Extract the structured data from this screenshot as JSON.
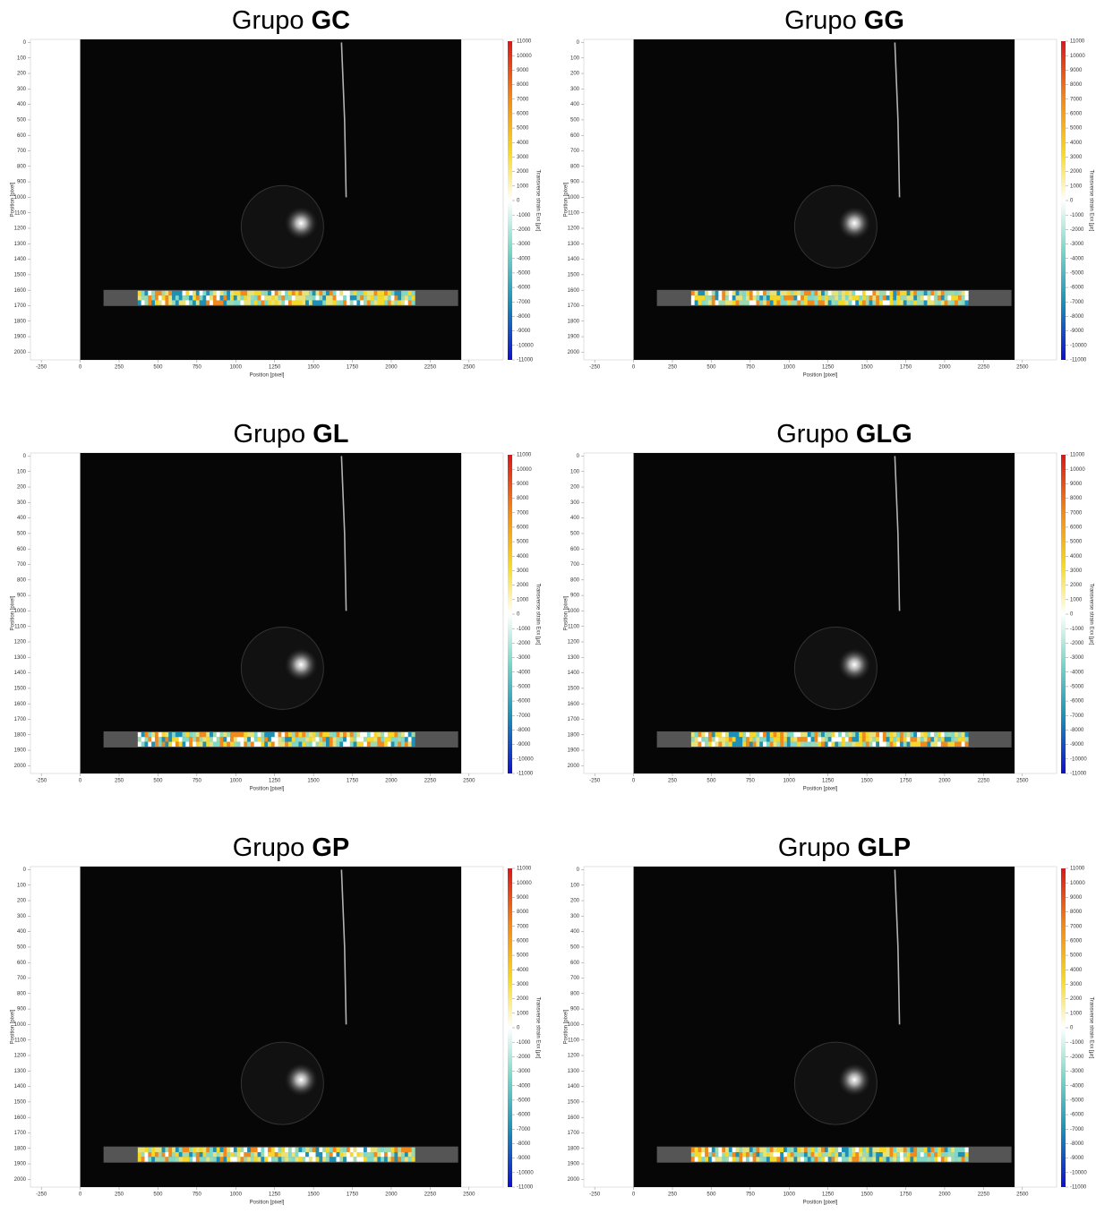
{
  "chart_data": [
    {
      "type": "image",
      "title_prefix": "Grupo",
      "title_group": "GC",
      "xlabel": "Position [pixel]",
      "ylabel": "Position [pixel]",
      "colorbar_label": "Transverse strain Exx [µε]",
      "xlim": [
        -320,
        2720
      ],
      "ylim": [
        2050,
        -20
      ],
      "xticks": [
        -250,
        0,
        250,
        500,
        750,
        1000,
        1250,
        1500,
        1750,
        2000,
        2250,
        2500
      ],
      "yticks": [
        0,
        100,
        200,
        300,
        400,
        500,
        600,
        700,
        800,
        900,
        1000,
        1100,
        1200,
        1300,
        1400,
        1500,
        1600,
        1700,
        1800,
        1900,
        2000
      ],
      "clim": [
        -11000,
        11000
      ],
      "cticks": [
        11000,
        10000,
        9000,
        8000,
        7000,
        6000,
        5000,
        4000,
        3000,
        2000,
        1000,
        0,
        -1000,
        -2000,
        -3000,
        -4000,
        -5000,
        -6000,
        -7000,
        -8000,
        -9000,
        -10000,
        -11000
      ]
    },
    {
      "type": "image",
      "title_prefix": "Grupo",
      "title_group": "GG",
      "xlabel": "Position [pixel]",
      "ylabel": "Position [pixel]",
      "colorbar_label": "Transverse strain Exx [µε]",
      "xlim": [
        -320,
        2720
      ],
      "ylim": [
        2050,
        -20
      ],
      "xticks": [
        -250,
        0,
        250,
        500,
        750,
        1000,
        1250,
        1500,
        1750,
        2000,
        2250,
        2500
      ],
      "yticks": [
        0,
        100,
        200,
        300,
        400,
        500,
        600,
        700,
        800,
        900,
        1000,
        1100,
        1200,
        1300,
        1400,
        1500,
        1600,
        1700,
        1800,
        1900,
        2000
      ],
      "clim": [
        -11000,
        11000
      ],
      "cticks": [
        11000,
        10000,
        9000,
        8000,
        7000,
        6000,
        5000,
        4000,
        3000,
        2000,
        1000,
        0,
        -1000,
        -2000,
        -3000,
        -4000,
        -5000,
        -6000,
        -7000,
        -8000,
        -9000,
        -10000,
        -11000
      ]
    },
    {
      "type": "image",
      "title_prefix": "Grupo",
      "title_group": "GL",
      "xlabel": "Position [pixel]",
      "ylabel": "Position [pixel]",
      "colorbar_label": "Transverse strain Exx [µε]",
      "xlim": [
        -320,
        2720
      ],
      "ylim": [
        2050,
        -20
      ],
      "xticks": [
        -250,
        0,
        250,
        500,
        750,
        1000,
        1250,
        1500,
        1750,
        2000,
        2250,
        2500
      ],
      "yticks": [
        0,
        100,
        200,
        300,
        400,
        500,
        600,
        700,
        800,
        900,
        1000,
        1100,
        1200,
        1300,
        1400,
        1500,
        1600,
        1700,
        1800,
        1900,
        2000
      ],
      "clim": [
        -11000,
        11000
      ],
      "cticks": [
        11000,
        10000,
        9000,
        8000,
        7000,
        6000,
        5000,
        4000,
        3000,
        2000,
        1000,
        0,
        -1000,
        -2000,
        -3000,
        -4000,
        -5000,
        -6000,
        -7000,
        -8000,
        -9000,
        -10000,
        -11000
      ]
    },
    {
      "type": "image",
      "title_prefix": "Grupo",
      "title_group": "GLG",
      "xlabel": "Position [pixel]",
      "ylabel": "Position [pixel]",
      "colorbar_label": "Transverse strain Exx [µε]",
      "xlim": [
        -320,
        2720
      ],
      "ylim": [
        2050,
        -20
      ],
      "xticks": [
        -250,
        0,
        250,
        500,
        750,
        1000,
        1250,
        1500,
        1750,
        2000,
        2250,
        2500
      ],
      "yticks": [
        0,
        100,
        200,
        300,
        400,
        500,
        600,
        700,
        800,
        900,
        1000,
        1100,
        1200,
        1300,
        1400,
        1500,
        1600,
        1700,
        1800,
        1900,
        2000
      ],
      "clim": [
        -11000,
        11000
      ],
      "cticks": [
        11000,
        10000,
        9000,
        8000,
        7000,
        6000,
        5000,
        4000,
        3000,
        2000,
        1000,
        0,
        -1000,
        -2000,
        -3000,
        -4000,
        -5000,
        -6000,
        -7000,
        -8000,
        -9000,
        -10000,
        -11000
      ]
    },
    {
      "type": "image",
      "title_prefix": "Grupo",
      "title_group": "GP",
      "xlabel": "Position [pixel]",
      "ylabel": "Position [pixel]",
      "colorbar_label": "Transverse strain Exx [µε]",
      "xlim": [
        -320,
        2720
      ],
      "ylim": [
        2050,
        -20
      ],
      "xticks": [
        -250,
        0,
        250,
        500,
        750,
        1000,
        1250,
        1500,
        1750,
        2000,
        2250,
        2500
      ],
      "yticks": [
        0,
        100,
        200,
        300,
        400,
        500,
        600,
        700,
        800,
        900,
        1000,
        1100,
        1200,
        1300,
        1400,
        1500,
        1600,
        1700,
        1800,
        1900,
        2000
      ],
      "clim": [
        -11000,
        11000
      ],
      "cticks": [
        11000,
        10000,
        9000,
        8000,
        7000,
        6000,
        5000,
        4000,
        3000,
        2000,
        1000,
        0,
        -1000,
        -2000,
        -3000,
        -4000,
        -5000,
        -6000,
        -7000,
        -8000,
        -9000,
        -10000,
        -11000
      ]
    },
    {
      "type": "image",
      "title_prefix": "Grupo",
      "title_group": "GLP",
      "xlabel": "Position [pixel]",
      "ylabel": "Position [pixel]",
      "colorbar_label": "Transverse strain Exx [µε]",
      "xlim": [
        -320,
        2720
      ],
      "ylim": [
        2050,
        -20
      ],
      "xticks": [
        -250,
        0,
        250,
        500,
        750,
        1000,
        1250,
        1500,
        1750,
        2000,
        2250,
        2500
      ],
      "yticks": [
        0,
        100,
        200,
        300,
        400,
        500,
        600,
        700,
        800,
        900,
        1000,
        1100,
        1200,
        1300,
        1400,
        1500,
        1600,
        1700,
        1800,
        1900,
        2000
      ],
      "clim": [
        -11000,
        11000
      ],
      "cticks": [
        11000,
        10000,
        9000,
        8000,
        7000,
        6000,
        5000,
        4000,
        3000,
        2000,
        1000,
        0,
        -1000,
        -2000,
        -3000,
        -4000,
        -5000,
        -6000,
        -7000,
        -8000,
        -9000,
        -10000,
        -11000
      ]
    }
  ]
}
